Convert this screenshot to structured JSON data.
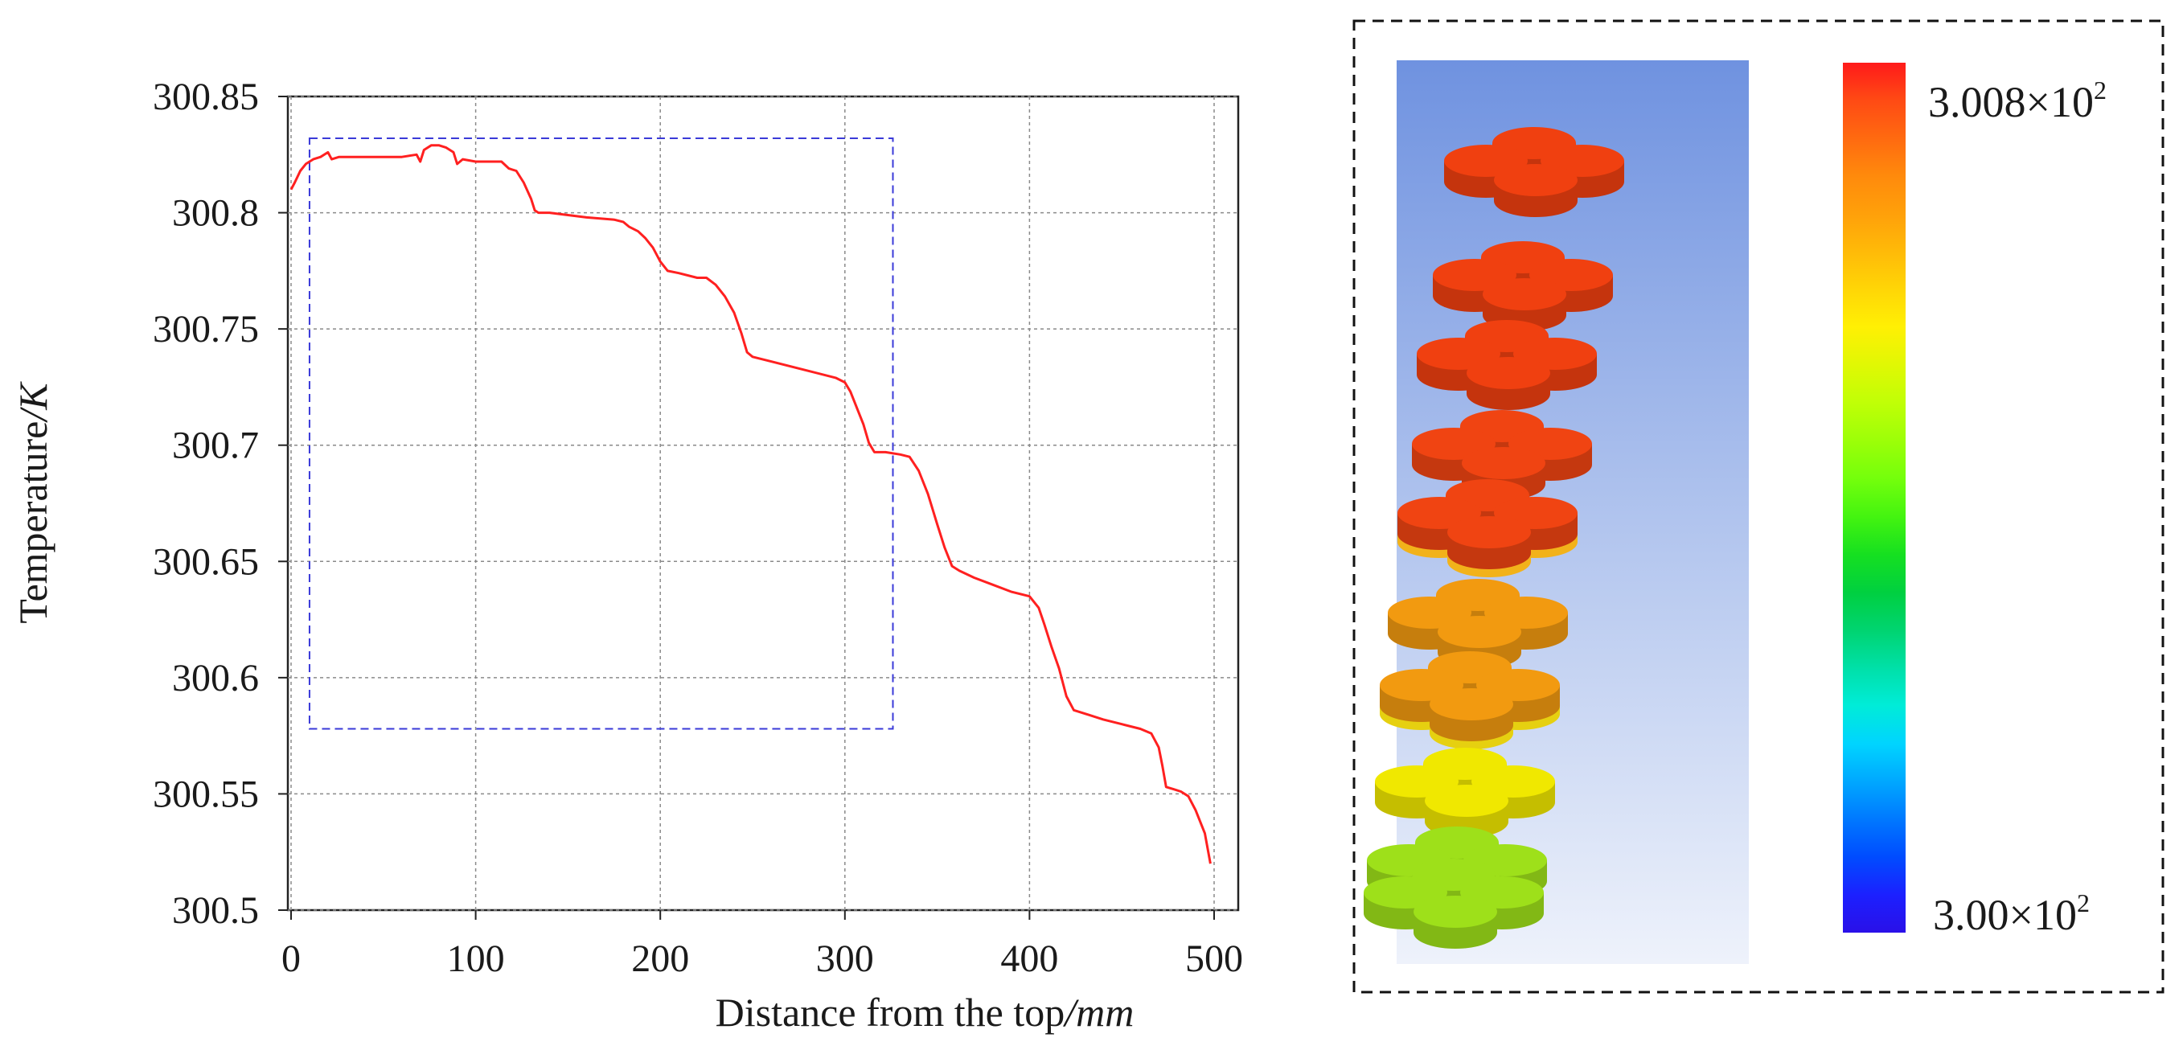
{
  "chart_data": {
    "type": "line",
    "title": "",
    "xlabel": "Distance from the top",
    "xlabel_unit": "/mm",
    "ylabel": "Temperature",
    "ylabel_unit": "/K",
    "xlim": [
      0,
      500
    ],
    "ylim": [
      300.5,
      300.85
    ],
    "x_ticks": [
      0,
      100,
      200,
      300,
      400,
      500
    ],
    "x_tick_labels": [
      "0",
      "100",
      "200",
      "300",
      "400",
      "500"
    ],
    "y_ticks": [
      300.5,
      300.55,
      300.6,
      300.65,
      300.7,
      300.75,
      300.8,
      300.85
    ],
    "y_tick_labels": [
      "300.5",
      "300.55",
      "300.6",
      "300.65",
      "300.7",
      "300.75",
      "300.8",
      "300.85"
    ],
    "grid": true,
    "highlight_box": {
      "x": [
        10,
        326
      ],
      "y": [
        300.578,
        300.832
      ]
    },
    "series": [
      {
        "name": "Temperature",
        "color": "#ff2020",
        "x": [
          0,
          2,
          5,
          8,
          12,
          16,
          20,
          22,
          26,
          40,
          60,
          68,
          70,
          72,
          76,
          80,
          84,
          88,
          90,
          93,
          100,
          110,
          114,
          118,
          122,
          126,
          130,
          132,
          134,
          140,
          160,
          175,
          180,
          183,
          188,
          192,
          196,
          200,
          204,
          210,
          220,
          225,
          230,
          235,
          240,
          244,
          247,
          250,
          260,
          280,
          295,
          300,
          303,
          306,
          310,
          313,
          316,
          322,
          330,
          335,
          340,
          345,
          350,
          354,
          358,
          362,
          370,
          380,
          390,
          400,
          405,
          408,
          412,
          416,
          420,
          424,
          428,
          432,
          440,
          450,
          460,
          466,
          470,
          472,
          474,
          478,
          482,
          486,
          490,
          495,
          498
        ],
        "y": [
          300.81,
          300.813,
          300.818,
          300.821,
          300.823,
          300.824,
          300.826,
          300.823,
          300.824,
          300.824,
          300.824,
          300.825,
          300.822,
          300.827,
          300.829,
          300.829,
          300.828,
          300.826,
          300.821,
          300.823,
          300.822,
          300.822,
          300.822,
          300.819,
          300.818,
          300.813,
          300.806,
          300.801,
          300.8,
          300.8,
          300.798,
          300.797,
          300.796,
          300.794,
          300.792,
          300.789,
          300.785,
          300.779,
          300.775,
          300.774,
          300.772,
          300.772,
          300.769,
          300.764,
          300.757,
          300.748,
          300.74,
          300.738,
          300.736,
          300.732,
          300.729,
          300.727,
          300.723,
          300.717,
          300.709,
          300.701,
          300.697,
          300.697,
          300.696,
          300.695,
          300.689,
          300.679,
          300.666,
          300.656,
          300.648,
          300.646,
          300.643,
          300.64,
          300.637,
          300.635,
          300.63,
          300.623,
          300.613,
          300.604,
          300.592,
          300.586,
          300.585,
          300.584,
          300.582,
          300.58,
          300.578,
          300.576,
          300.57,
          300.562,
          300.553,
          300.552,
          300.551,
          300.549,
          300.543,
          300.533,
          300.52
        ]
      }
    ]
  },
  "colorbar": {
    "max_label": "3.008×10",
    "max_exp": "2",
    "min_label": "3.00×10",
    "min_exp": "2",
    "colors": [
      "#ff1a1a",
      "#ff4a14",
      "#ff6a10",
      "#ff8a0c",
      "#ffa00a",
      "#ffba08",
      "#ffd606",
      "#fff004",
      "#e0f804",
      "#c0ff06",
      "#9cff08",
      "#74ff0c",
      "#44f410",
      "#16e020",
      "#00d040",
      "#00d470",
      "#00e0a8",
      "#00ecd8",
      "#00d4ff",
      "#00a8ff",
      "#0078ff",
      "#004cff",
      "#1c20ff",
      "#2a10e8"
    ]
  },
  "model": {
    "colors": {
      "layer1": "#f04010",
      "layer2": "#f04010",
      "layer3": "#f04412",
      "layer4": "#f29a10",
      "layer5": "#f0e800",
      "layer6": "#9ee01a"
    }
  }
}
